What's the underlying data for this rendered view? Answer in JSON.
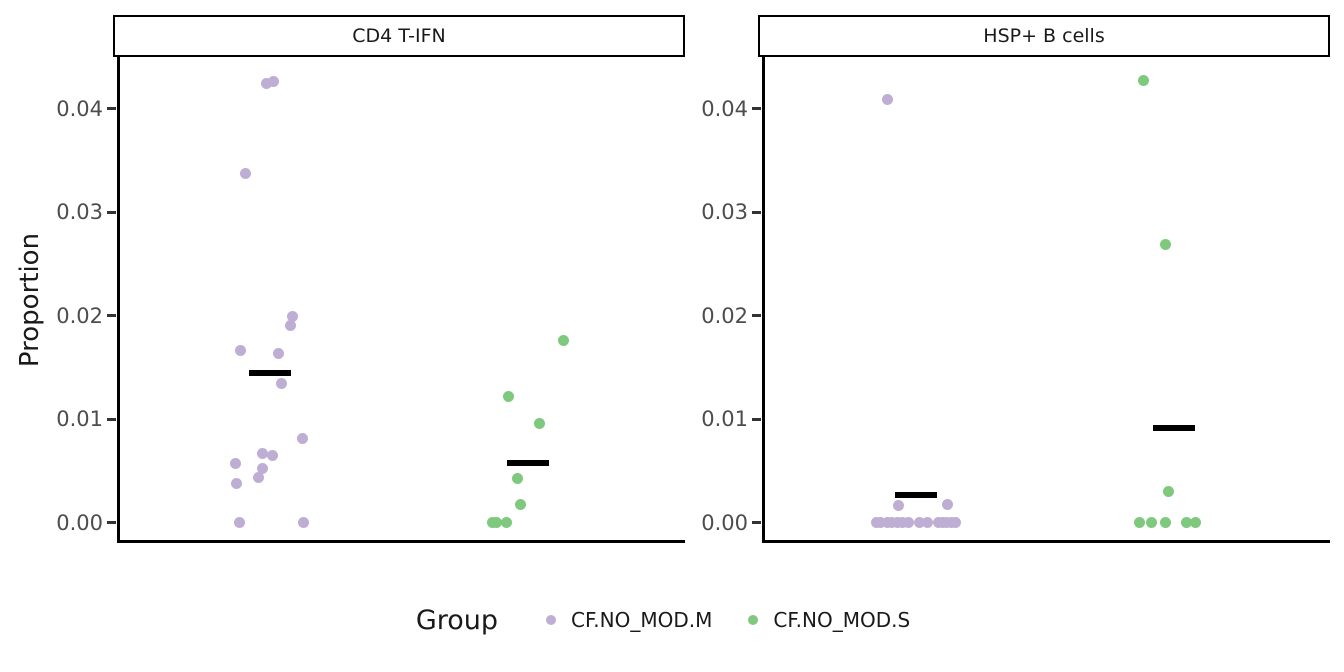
{
  "chart_data": {
    "type": "scatter",
    "subtype": "faceted-jitter-with-mean-bars",
    "ylabel": "Proportion",
    "ylim": [
      0,
      0.045
    ],
    "grid": false,
    "y_ticks": [
      {
        "label": "0.00",
        "value": 0.0
      },
      {
        "label": "0.01",
        "value": 0.01
      },
      {
        "label": "0.02",
        "value": 0.02
      },
      {
        "label": "0.03",
        "value": 0.03
      },
      {
        "label": "0.04",
        "value": 0.04
      }
    ],
    "legend": {
      "title": "Group",
      "position": "bottom",
      "items": [
        {
          "label": "CF.NO_MOD.M",
          "color": "#BEAED4"
        },
        {
          "label": "CF.NO_MOD.S",
          "color": "#7FC97F"
        }
      ]
    },
    "panels": [
      {
        "title": "CD4 T-IFN",
        "groups": [
          {
            "name": "CF.NO_MOD.M",
            "color": "#BEAED4",
            "mean": 0.0145,
            "mean_x": 0.269,
            "points": [
              [
                0.264,
                0.0424
              ],
              [
                0.276,
                0.0426
              ],
              [
                0.227,
                0.0337
              ],
              [
                0.309,
                0.0199
              ],
              [
                0.306,
                0.019
              ],
              [
                0.217,
                0.0166
              ],
              [
                0.284,
                0.0163
              ],
              [
                0.289,
                0.0134
              ],
              [
                0.327,
                0.0081
              ],
              [
                0.256,
                0.0067
              ],
              [
                0.274,
                0.0065
              ],
              [
                0.208,
                0.0057
              ],
              [
                0.256,
                0.0052
              ],
              [
                0.249,
                0.0044
              ],
              [
                0.211,
                0.0038
              ],
              [
                0.216,
                0.0
              ],
              [
                0.329,
                0.0
              ]
            ]
          },
          {
            "name": "CF.NO_MOD.S",
            "color": "#7FC97F",
            "mean": 0.0058,
            "mean_x": 0.723,
            "points": [
              [
                0.786,
                0.0176
              ],
              [
                0.69,
                0.0122
              ],
              [
                0.743,
                0.0096
              ],
              [
                0.705,
                0.0043
              ],
              [
                0.711,
                0.0018
              ],
              [
                0.661,
                0.0
              ],
              [
                0.668,
                0.0
              ],
              [
                0.685,
                0.0
              ]
            ]
          }
        ]
      },
      {
        "title": "HSP+ B cells",
        "groups": [
          {
            "name": "CF.NO_MOD.M",
            "color": "#BEAED4",
            "mean": 0.0027,
            "mean_x": 0.272,
            "points": [
              [
                0.221,
                0.0409
              ],
              [
                0.241,
                0.0017
              ],
              [
                0.327,
                0.0018
              ],
              [
                0.202,
                0.0
              ],
              [
                0.209,
                0.0
              ],
              [
                0.221,
                0.0
              ],
              [
                0.228,
                0.0
              ],
              [
                0.239,
                0.0
              ],
              [
                0.247,
                0.0
              ],
              [
                0.258,
                0.0
              ],
              [
                0.277,
                0.0
              ],
              [
                0.291,
                0.0
              ],
              [
                0.31,
                0.0
              ],
              [
                0.317,
                0.0
              ],
              [
                0.325,
                0.0
              ],
              [
                0.333,
                0.0
              ],
              [
                0.34,
                0.0
              ]
            ]
          },
          {
            "name": "CF.NO_MOD.S",
            "color": "#7FC97F",
            "mean": 0.0091,
            "mean_x": 0.726,
            "points": [
              [
                0.671,
                0.0427
              ],
              [
                0.711,
                0.0269
              ],
              [
                0.715,
                0.003
              ],
              [
                0.664,
                0.0
              ],
              [
                0.686,
                0.0
              ],
              [
                0.71,
                0.0
              ],
              [
                0.748,
                0.0
              ],
              [
                0.764,
                0.0
              ]
            ]
          }
        ]
      }
    ]
  }
}
